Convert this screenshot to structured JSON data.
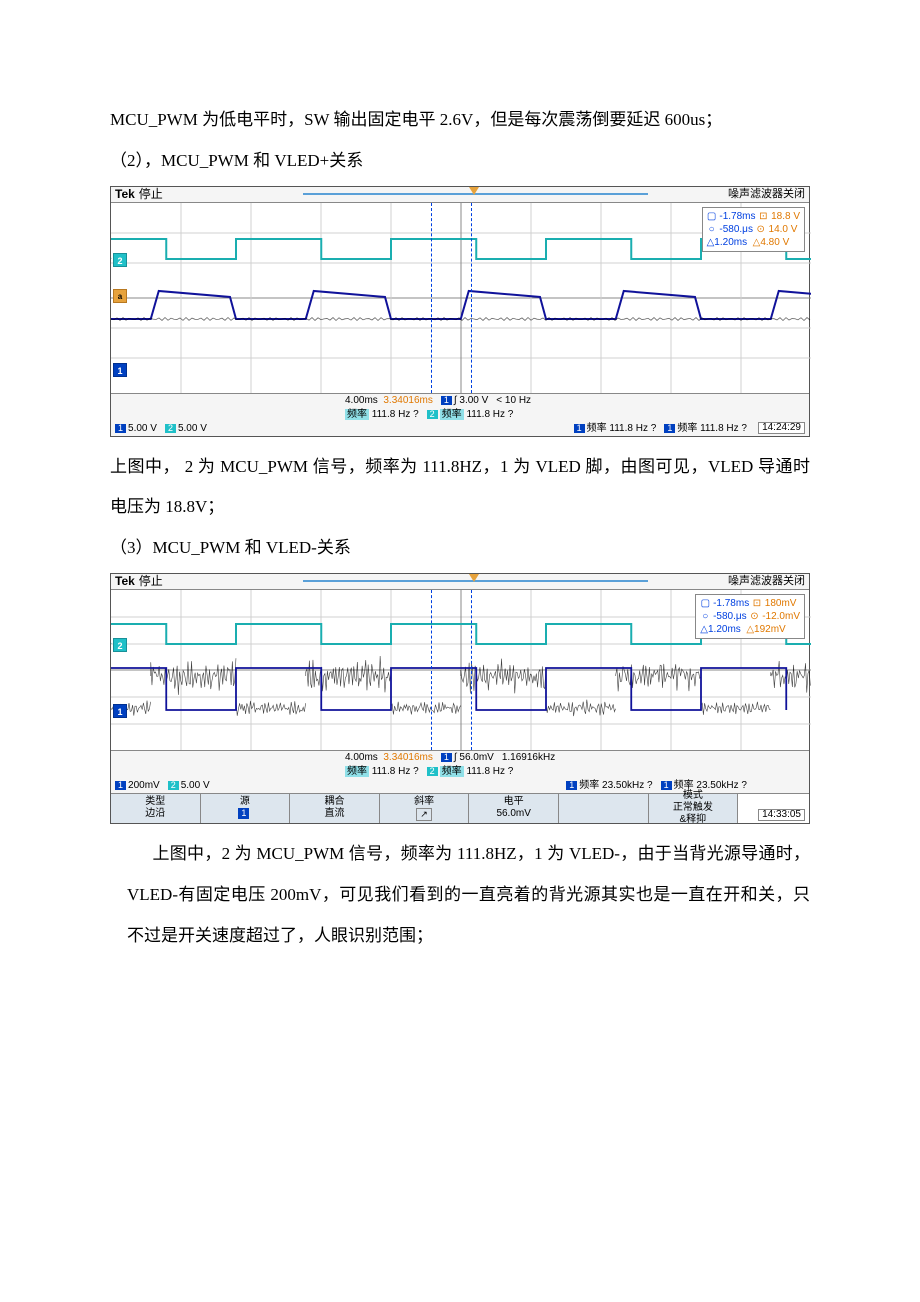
{
  "para1": "MCU_PWM 为低电平时，SW 输出固定电平 2.6V，但是每次震荡倒要延迟 600us；",
  "para2_title": "（2），MCU_PWM 和 VLED+关系",
  "para3": "上图中， 2 为 MCU_PWM 信号，频率为 111.8HZ，1 为 VLED 脚，由图可见，VLED 导通时电压为 18.8V；",
  "para4_title": "（3）MCU_PWM 和 VLED-关系",
  "para5a": "上图中，2 为 MCU_PWM 信号，频率为 111.8HZ，1 为 VLED-，由于当背光源导通时，VLED-有固定电压 200mV，可见我们看到的一直亮着的背光源其实也是一直在开和关，只不过是开关速度超过了，人眼识别范围；",
  "scope_common": {
    "tek": "Tek",
    "stop": "停止",
    "filter_off": "噪声滤波器关闭",
    "ch1": "1",
    "ch2": "2",
    "freq_label_cy": "频率",
    "freq_label_bl": "频率"
  },
  "scope1": {
    "height_class": "",
    "cursor": {
      "r1_t": "-1.78ms",
      "r1_v": "18.8 V",
      "r2_t": "-580.μs",
      "r2_v": "14.0 V",
      "d_t": "△1.20ms",
      "d_v": "△4.80 V"
    },
    "timebase": "4.00ms",
    "tpos": "3.34016ms",
    "trig": "∫ 3.00 V",
    "trig_freq": "< 10 Hz",
    "ch1_scale": "5.00 V",
    "ch2_scale": "5.00 V",
    "freq_cy1": "111.8 Hz  ?",
    "freq_cy2": "111.8 Hz  ?",
    "freq_bl1": "111.8 Hz  ?",
    "freq_bl2": "111.8 Hz  ?",
    "time": "14:24:29",
    "pwm_y_hi": 36,
    "pwm_y_lo": 56,
    "led_y_hi": 88,
    "led_y_lo": 116,
    "colors": {
      "pwm": "#1aaeb0",
      "led": "#10129a",
      "led_noise": "#000"
    }
  },
  "scope2": {
    "cursor": {
      "r1_t": "-1.78ms",
      "r1_v": "180mV",
      "r2_t": "-580.μs",
      "r2_v": "-12.0mV",
      "d_t": "△1.20ms",
      "d_v": "△192mV"
    },
    "timebase": "4.00ms",
    "tpos": "3.34016ms",
    "trig": "∫ 56.0mV",
    "trig_freq": "1.16916kHz",
    "ch1_scale": "200mV",
    "ch2_scale": "5.00 V",
    "freq_cy1": "111.8 Hz  ?",
    "freq_cy2": "111.8 Hz  ?",
    "freq_bl1": "23.50kHz  ?",
    "freq_bl2": "23.50kHz  ?",
    "time": "14:33:05",
    "pwm_y_hi": 34,
    "pwm_y_lo": 54,
    "led_y_hi": 78,
    "led_y_lo": 120,
    "menu": {
      "c1a": "类型",
      "c1b": "边沿",
      "c2a": "源",
      "c2b": "1",
      "c3a": "耦合",
      "c3b": "直流",
      "c4a": "斜率",
      "c4b": "↗",
      "c5a": "电平",
      "c5b": "56.0mV",
      "c6a": "",
      "c6b": "",
      "c7a": "模式",
      "c7b": "正常触发",
      "c7c": "&释抑"
    }
  }
}
